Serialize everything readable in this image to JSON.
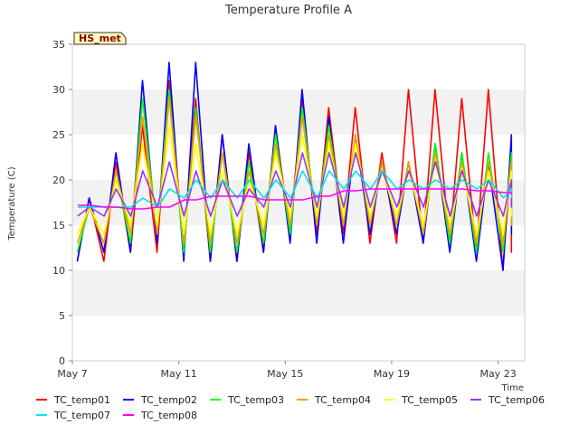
{
  "chart_data": {
    "type": "line",
    "title": "Temperature Profile A",
    "xlabel": "Time",
    "ylabel": "Temperature (C)",
    "badge": "HS_met",
    "x_ticks": [
      "May 7",
      "May 11",
      "May 15",
      "May 19",
      "May 23"
    ],
    "x_tick_days": [
      0,
      4,
      8,
      12,
      16
    ],
    "x_range_days": [
      0,
      17
    ],
    "y_ticks": [
      0,
      5,
      10,
      15,
      20,
      25,
      30,
      35
    ],
    "ylim": [
      0,
      35
    ],
    "grid": "horizontal bands",
    "legend_position": "bottom",
    "series": [
      {
        "name": "TC_temp01",
        "color": "#ff0000",
        "x": [
          "May 7",
          "May 8",
          "May 9",
          "May 10",
          "May 11",
          "May 12",
          "May 13",
          "May 14",
          "May 15",
          "May 16",
          "May 17",
          "May 18",
          "May 19",
          "May 20",
          "May 21",
          "May 22",
          "May 23",
          "May 24"
        ],
        "min": [
          11,
          11,
          12,
          12,
          12,
          11,
          11,
          12,
          14,
          14,
          14,
          13,
          13,
          13,
          13,
          12,
          10,
          12
        ],
        "max": [
          18,
          22,
          26,
          31,
          29,
          25,
          23,
          26,
          29,
          28,
          28,
          23,
          30,
          30,
          29,
          30,
          23,
          19
        ]
      },
      {
        "name": "TC_temp02",
        "color": "#0000ff",
        "x": [
          "May 7",
          "May 8",
          "May 9",
          "May 10",
          "May 11",
          "May 12",
          "May 13",
          "May 14",
          "May 15",
          "May 16",
          "May 17",
          "May 18",
          "May 19",
          "May 20",
          "May 21",
          "May 22",
          "May 23",
          "May 24"
        ],
        "min": [
          11,
          12,
          12,
          13,
          11,
          11,
          11,
          12,
          13,
          13,
          13,
          14,
          14,
          13,
          12,
          11,
          10,
          14
        ],
        "max": [
          18,
          23,
          31,
          33,
          33,
          25,
          24,
          26,
          30,
          27,
          25,
          22,
          22,
          24,
          23,
          22,
          25,
          18
        ]
      },
      {
        "name": "TC_temp03",
        "color": "#00ff00",
        "x": [
          "May 7",
          "May 8",
          "May 9",
          "May 10",
          "May 11",
          "May 12",
          "May 13",
          "May 14",
          "May 15",
          "May 16",
          "May 17",
          "May 18",
          "May 19",
          "May 20",
          "May 21",
          "May 22",
          "May 23",
          "May 24"
        ],
        "min": [
          12,
          13,
          13,
          14,
          12,
          12,
          12,
          13,
          14,
          15,
          15,
          15,
          15,
          14,
          13,
          12,
          12,
          15
        ],
        "max": [
          17,
          21,
          29,
          30,
          28,
          23,
          22,
          25,
          28,
          26,
          25,
          22,
          22,
          24,
          23,
          23,
          23,
          18
        ]
      },
      {
        "name": "TC_temp04",
        "color": "#ff9900",
        "x": [
          "May 7",
          "May 8",
          "May 9",
          "May 10",
          "May 11",
          "May 12",
          "May 13",
          "May 14",
          "May 15",
          "May 16",
          "May 17",
          "May 18",
          "May 19",
          "May 20",
          "May 21",
          "May 22",
          "May 23",
          "May 24"
        ],
        "min": [
          13,
          13,
          14,
          14,
          13,
          13,
          13,
          14,
          15,
          15,
          15,
          15,
          15,
          14,
          14,
          13,
          13,
          15
        ],
        "max": [
          17,
          21,
          27,
          29,
          27,
          23,
          21,
          24,
          27,
          25,
          25,
          22,
          22,
          23,
          22,
          22,
          22,
          18
        ]
      },
      {
        "name": "TC_temp05",
        "color": "#ffff00",
        "x": [
          "May 7",
          "May 8",
          "May 9",
          "May 10",
          "May 11",
          "May 12",
          "May 13",
          "May 14",
          "May 15",
          "May 16",
          "May 17",
          "May 18",
          "May 19",
          "May 20",
          "May 21",
          "May 22",
          "May 23",
          "May 24"
        ],
        "min": [
          14,
          14,
          15,
          15,
          14,
          14,
          14,
          15,
          16,
          16,
          16,
          16,
          16,
          15,
          15,
          14,
          14,
          16
        ],
        "max": [
          17,
          20,
          24,
          26,
          24,
          21,
          20,
          23,
          25,
          24,
          24,
          21,
          21,
          22,
          21,
          21,
          21,
          18
        ]
      },
      {
        "name": "TC_temp06",
        "color": "#9933ff",
        "x": [
          "May 7",
          "May 8",
          "May 9",
          "May 10",
          "May 11",
          "May 12",
          "May 13",
          "May 14",
          "May 15",
          "May 16",
          "May 17",
          "May 18",
          "May 19",
          "May 20",
          "May 21",
          "May 22",
          "May 23",
          "May 24"
        ],
        "min": [
          16,
          16,
          16,
          17,
          16,
          16,
          16,
          17,
          17,
          17,
          17,
          17,
          17,
          17,
          16,
          16,
          16,
          17
        ],
        "max": [
          17,
          19,
          21,
          22,
          21,
          20,
          19,
          21,
          23,
          23,
          23,
          21,
          21,
          22,
          21,
          20,
          20,
          18
        ]
      },
      {
        "name": "TC_temp07",
        "color": "#00e5e5",
        "x": [
          "May 7",
          "May 8",
          "May 9",
          "May 10",
          "May 11",
          "May 12",
          "May 13",
          "May 14",
          "May 15",
          "May 16",
          "May 17",
          "May 18",
          "May 19",
          "May 20",
          "May 21",
          "May 22",
          "May 23",
          "May 24"
        ],
        "min": [
          17,
          17,
          17,
          17,
          18,
          18,
          18,
          18,
          18,
          18,
          19,
          19,
          19,
          19,
          19,
          19,
          18,
          18
        ],
        "max": [
          17,
          17,
          18,
          19,
          20,
          20,
          20,
          20,
          21,
          21,
          21,
          21,
          20,
          20,
          20,
          20,
          19,
          18
        ]
      },
      {
        "name": "TC_temp08",
        "color": "#ff00ff",
        "x": [
          "May 7",
          "May 8",
          "May 9",
          "May 10",
          "May 11",
          "May 12",
          "May 13",
          "May 14",
          "May 15",
          "May 16",
          "May 17",
          "May 18",
          "May 19",
          "May 20",
          "May 21",
          "May 22",
          "May 23",
          "May 24"
        ],
        "min": [
          17.2,
          17.0,
          16.8,
          17.0,
          17.8,
          18.2,
          18.2,
          17.8,
          17.8,
          18.2,
          18.8,
          19.0,
          19.0,
          19.0,
          19.0,
          18.8,
          18.6,
          18.4
        ],
        "max": [
          17.2,
          17.0,
          16.8,
          17.0,
          17.8,
          18.2,
          18.2,
          17.8,
          17.8,
          18.2,
          18.8,
          19.0,
          19.0,
          19.0,
          19.0,
          18.8,
          18.6,
          18.4
        ]
      }
    ]
  }
}
